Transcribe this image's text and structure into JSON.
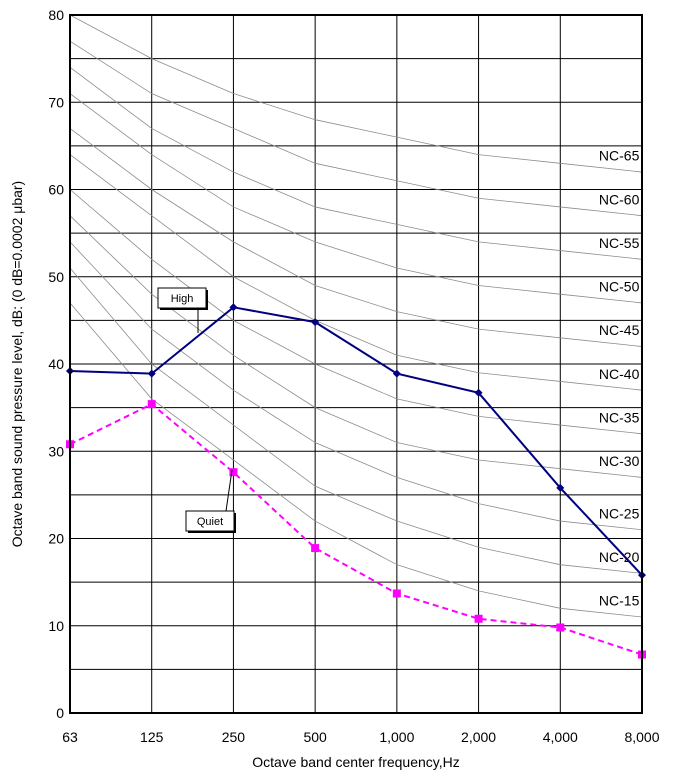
{
  "chart_data": {
    "type": "line",
    "xlabel": "Octave band center frequency,Hz",
    "ylabel": "Octave band sound pressure level, dB: (0 dB=0.0002 μbar)",
    "categories": [
      "63",
      "125",
      "250",
      "500",
      "1,000",
      "2,000",
      "4,000",
      "8,000"
    ],
    "ylim": [
      0,
      80
    ],
    "yticks": [
      0,
      10,
      20,
      30,
      40,
      50,
      60,
      70,
      80
    ],
    "grid": true,
    "series": [
      {
        "name": "High",
        "color": "#000080",
        "marker": "diamond",
        "dash": "solid",
        "values": [
          39.2,
          38.9,
          46.5,
          44.8,
          38.9,
          36.7,
          25.8,
          15.8
        ]
      },
      {
        "name": "Quiet",
        "color": "#ff00ff",
        "marker": "square",
        "dash": "dashed",
        "values": [
          30.8,
          35.4,
          27.6,
          18.9,
          13.7,
          10.8,
          9.8,
          6.7
        ]
      }
    ],
    "nc_curves": [
      {
        "label": "NC-65",
        "values": [
          80,
          75,
          71,
          68,
          66,
          64,
          63,
          62
        ]
      },
      {
        "label": "NC-60",
        "values": [
          77,
          71,
          67,
          63,
          61,
          59,
          58,
          57
        ]
      },
      {
        "label": "NC-55",
        "values": [
          74,
          67,
          62,
          58,
          56,
          54,
          53,
          52
        ]
      },
      {
        "label": "NC-50",
        "values": [
          71,
          64,
          58,
          54,
          51,
          49,
          48,
          47
        ]
      },
      {
        "label": "NC-45",
        "values": [
          67,
          60,
          54,
          49,
          46,
          44,
          43,
          42
        ]
      },
      {
        "label": "NC-40",
        "values": [
          64,
          57,
          50,
          45,
          41,
          39,
          38,
          37
        ]
      },
      {
        "label": "NC-35",
        "values": [
          60,
          52,
          45,
          40,
          36,
          34,
          33,
          32
        ]
      },
      {
        "label": "NC-30",
        "values": [
          57,
          48,
          41,
          35,
          31,
          29,
          28,
          27
        ]
      },
      {
        "label": "NC-25",
        "values": [
          54,
          44,
          37,
          31,
          27,
          24,
          22,
          21
        ]
      },
      {
        "label": "NC-20",
        "values": [
          51,
          40,
          33,
          26,
          22,
          19,
          17,
          16
        ]
      },
      {
        "label": "NC-15",
        "values": [
          47,
          36,
          29,
          22,
          17,
          14,
          12,
          11
        ]
      }
    ]
  }
}
